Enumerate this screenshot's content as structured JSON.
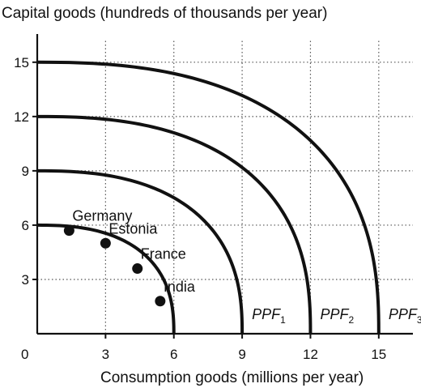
{
  "chart_data": {
    "type": "line",
    "title": "Capital goods (hundreds of thousands per year)",
    "xlabel": "Consumption goods (millions per year)",
    "ylabel": "",
    "origin_label": "0",
    "xlim": [
      0,
      16.5
    ],
    "ylim": [
      0,
      16.2
    ],
    "x_ticks": [
      3,
      6,
      9,
      12,
      15
    ],
    "y_ticks": [
      3,
      6,
      9,
      12,
      15
    ],
    "grid": "dotted",
    "series": [
      {
        "name": "PPF",
        "subscript": "",
        "x_intercept": 6,
        "y_intercept": 6
      },
      {
        "name": "PPF",
        "subscript": "1",
        "x_intercept": 9,
        "y_intercept": 9
      },
      {
        "name": "PPF",
        "subscript": "2",
        "x_intercept": 12,
        "y_intercept": 12
      },
      {
        "name": "PPF",
        "subscript": "3",
        "x_intercept": 15,
        "y_intercept": 15
      }
    ],
    "points": [
      {
        "label": "Germany",
        "x": 1.4,
        "y": 5.7
      },
      {
        "label": "Estonia",
        "x": 3.0,
        "y": 5.0
      },
      {
        "label": "France",
        "x": 4.4,
        "y": 3.6
      },
      {
        "label": "India",
        "x": 5.4,
        "y": 1.8
      }
    ]
  }
}
